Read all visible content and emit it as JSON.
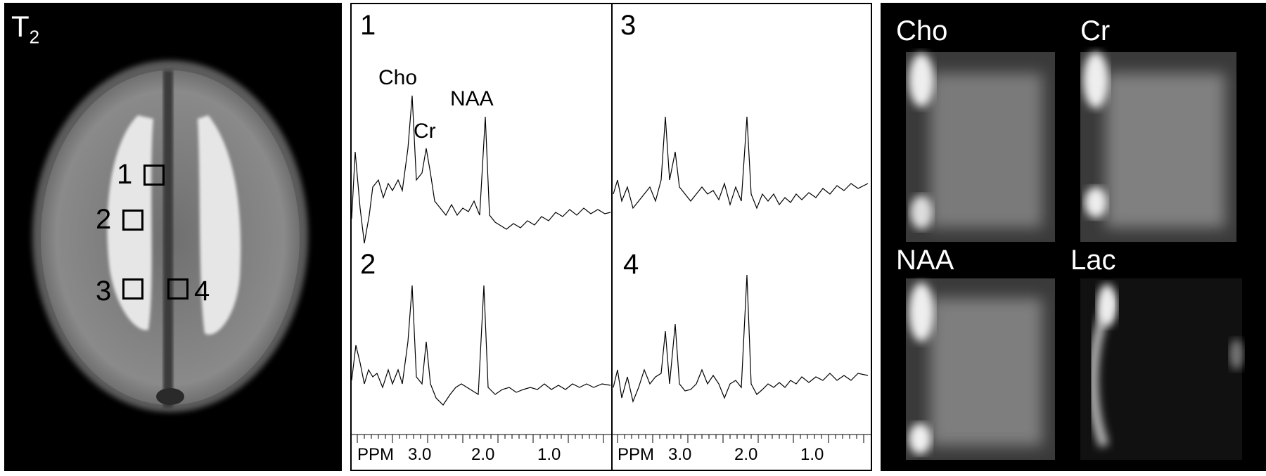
{
  "mri_panel": {
    "t2_label_main": "T",
    "t2_label_sub": "2",
    "roi_labels": [
      "1",
      "2",
      "3",
      "4"
    ]
  },
  "spectra_panel": {
    "subplot_numbers": [
      "1",
      "3",
      "2",
      "4"
    ],
    "peak_labels": {
      "cho": "Cho",
      "cr": "Cr",
      "naa": "NAA"
    },
    "axis": {
      "unit": "PPM",
      "ticks": [
        "3.0",
        "2.0",
        "1.0"
      ]
    }
  },
  "maps_panel": {
    "titles": [
      "Cho",
      "Cr",
      "NAA",
      "Lac"
    ]
  }
}
